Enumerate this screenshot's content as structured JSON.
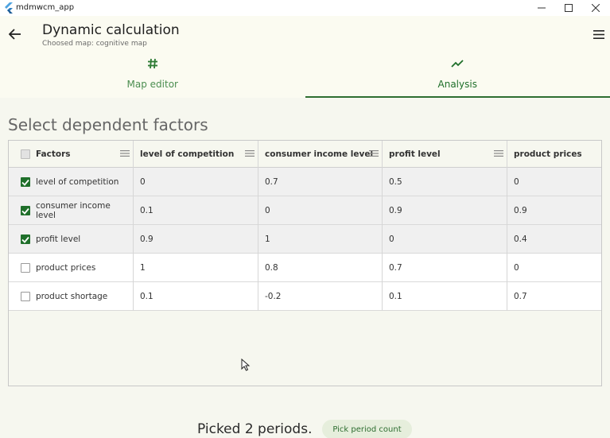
{
  "window": {
    "app_name": "mdmwcm_app",
    "minimize_icon": "minimize-icon",
    "maximize_icon": "maximize-icon",
    "close_icon": "close-icon"
  },
  "appbar": {
    "title": "Dynamic calculation",
    "subtitle": "Choosed map: cognitive map",
    "back_icon": "arrow-left-icon",
    "menu_icon": "hamburger-menu-icon"
  },
  "tabs": [
    {
      "label": "Map editor",
      "icon": "hash-icon",
      "active": false
    },
    {
      "label": "Analysis",
      "icon": "trend-line-icon",
      "active": true
    }
  ],
  "section_title": "Select dependent factors",
  "grid": {
    "columns": [
      "Factors",
      "level of competition",
      "consumer income level",
      "profit level",
      "product prices"
    ],
    "rows": [
      {
        "checked": true,
        "factor": "level of competition",
        "values": [
          "0",
          "0.7",
          "0.5",
          "0"
        ]
      },
      {
        "checked": true,
        "factor": "consumer income level",
        "values": [
          "0.1",
          "0",
          "0.9",
          "0.9"
        ]
      },
      {
        "checked": true,
        "factor": "profit level",
        "values": [
          "0.9",
          "1",
          "0",
          "0.4"
        ]
      },
      {
        "checked": false,
        "factor": "product prices",
        "values": [
          "1",
          "0.8",
          "0.7",
          "0"
        ]
      },
      {
        "checked": false,
        "factor": "product shortage",
        "values": [
          "0.1",
          "-0.2",
          "0.1",
          "0.7"
        ]
      }
    ]
  },
  "footer": {
    "picked_text": "Picked 2 periods.",
    "pick_button_label": "Pick period count"
  },
  "colors": {
    "accent": "#1f6f2a",
    "background": "#f6f7ef",
    "appbar": "#fbfbf1"
  }
}
